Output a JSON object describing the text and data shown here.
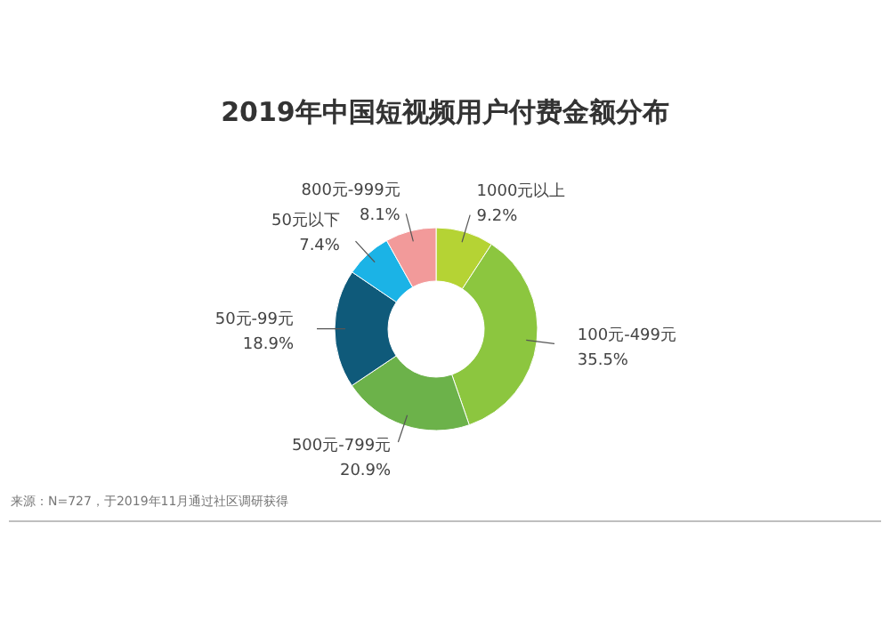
{
  "chart_data": {
    "type": "donut",
    "title": "2019年中国短视频用户付费金额分布",
    "categories": [
      "1000元以上",
      "100元-499元",
      "500元-799元",
      "50元-99元",
      "50元以下",
      "800元-999元"
    ],
    "values": [
      9.2,
      35.5,
      20.9,
      18.9,
      7.4,
      8.1
    ],
    "value_labels": [
      "9.2%",
      "35.5%",
      "20.9%",
      "18.9%",
      "7.4%",
      "8.1%"
    ],
    "colors": [
      "#b5d334",
      "#8cc63f",
      "#6cb24a",
      "#0f5a7a",
      "#1bb3e6",
      "#f29a9a"
    ],
    "annotations": [
      "来源：N=727，于2019年11月通过社区调研获得"
    ]
  }
}
